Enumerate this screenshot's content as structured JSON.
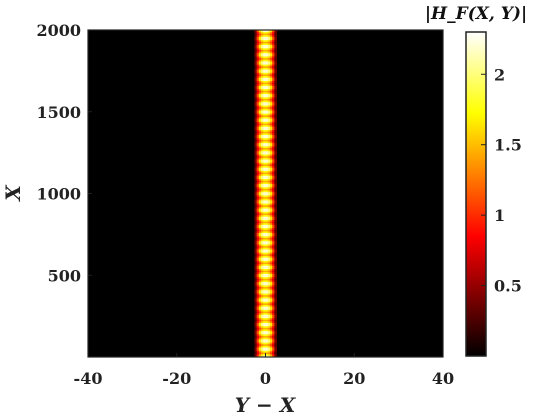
{
  "chart_data": {
    "type": "heatmap",
    "xlabel": "Y − X",
    "ylabel": "X",
    "colorbar_label": "|H_F(X, Y)|",
    "xlim": [
      -40,
      40
    ],
    "ylim": [
      0,
      2000
    ],
    "xticks": [
      -40,
      -20,
      0,
      20,
      40
    ],
    "yticks": [
      500,
      1000,
      1500,
      2000
    ],
    "colorbar_range": [
      0,
      2.3
    ],
    "colorbar_ticks": [
      0.5,
      1,
      1.5,
      2
    ],
    "colormap": "hot",
    "band": {
      "center": 0,
      "half_width": 2.5,
      "peak": 2.3,
      "modulation_period": 50
    }
  }
}
